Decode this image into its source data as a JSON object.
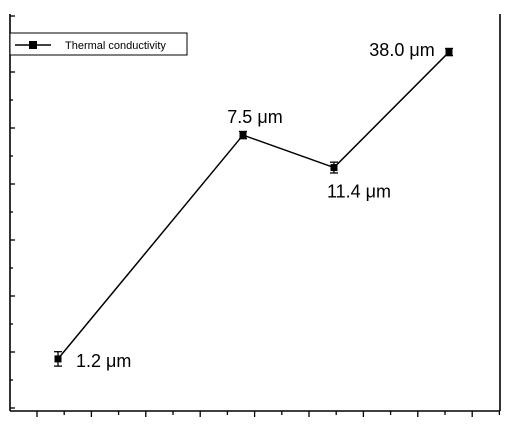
{
  "chart_data": {
    "type": "line",
    "x": [
      "1.2 μm",
      "7.5 μm",
      "11.4 μm",
      "38.0 μm"
    ],
    "series": [
      {
        "name": "Thermal conductivity",
        "values": [
          0.1,
          0.72,
          0.63,
          0.95
        ],
        "error": [
          0.02,
          0.01,
          0.015,
          0.01
        ]
      }
    ],
    "point_labels": [
      "1.2 μm",
      "7.5 μm",
      "11.4 μm",
      "38.0 μm"
    ],
    "ylim": [
      0,
      1
    ],
    "xlabel": "",
    "ylabel": "",
    "title": "",
    "legend_position": "top-left",
    "grid": false,
    "axis_tick_labels_visible": false
  },
  "colors": {
    "line": "#000000",
    "background": "#ffffff"
  }
}
